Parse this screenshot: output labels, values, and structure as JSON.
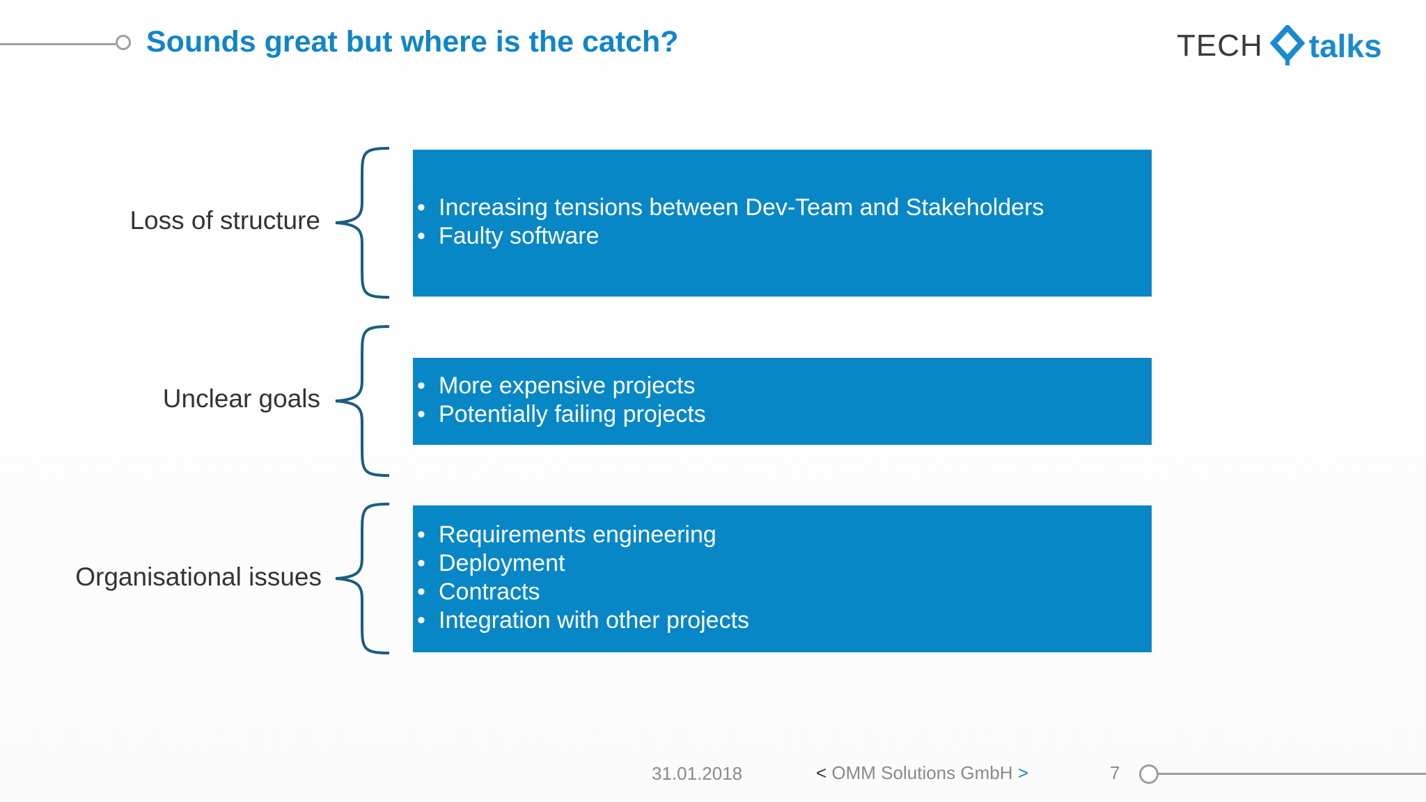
{
  "slide": {
    "title": "Sounds great but where is the catch?",
    "logo": {
      "tech": "TECH",
      "talks": "talks"
    },
    "rows": [
      {
        "label": "Loss of structure",
        "bullets": [
          "Increasing tensions between Dev-Team and Stakeholders",
          "Faulty software"
        ]
      },
      {
        "label": "Unclear goals",
        "bullets": [
          "More expensive projects",
          "Potentially failing projects"
        ]
      },
      {
        "label": "Organisational issues",
        "bullets": [
          "Requirements engineering",
          "Deployment",
          "Contracts",
          "Integration with other projects"
        ]
      }
    ],
    "footer": {
      "date": "31.01.2018",
      "company_open": "<",
      "company": "OMM Solutions GmbH",
      "company_close": ">",
      "page": "7"
    }
  },
  "colors": {
    "title": "#1185c8",
    "box": "#0887c7",
    "brace": "#1a5d80",
    "accent": "#1a8ad0"
  },
  "icons": {
    "logo_mark": "diamond-chevron-logo-icon",
    "header_marker": "circle-marker-icon",
    "footer_marker": "circle-marker-icon"
  }
}
